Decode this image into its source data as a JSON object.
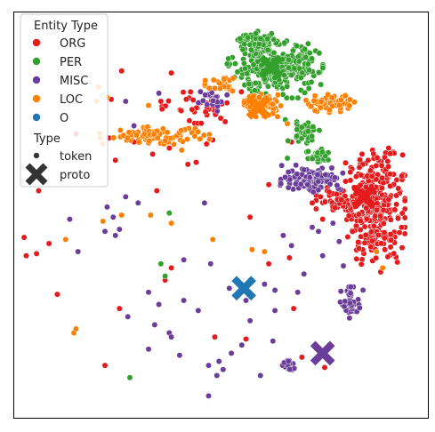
{
  "chart_data": {
    "type": "scatter",
    "title": "",
    "xlabel": "",
    "ylabel": "",
    "xlim": [
      0,
      100
    ],
    "ylim": [
      0,
      100
    ],
    "grid": false,
    "axis_ticks": false,
    "legend_placement": "upper-left",
    "legend": {
      "hue_title": "Entity Type",
      "hue_entries": [
        {
          "label": "ORG",
          "color": "#e41a1c"
        },
        {
          "label": "PER",
          "color": "#33a02c"
        },
        {
          "label": "MISC",
          "color": "#6a3d9a"
        },
        {
          "label": "LOC",
          "color": "#ff7f00"
        },
        {
          "label": "O",
          "color": "#1f78b4"
        }
      ],
      "style_title": "Type",
      "style_entries": [
        {
          "label": "token",
          "marker": "circle"
        },
        {
          "label": "proto",
          "marker": "x"
        }
      ]
    },
    "series": [
      {
        "name": "ORG",
        "color": "#e41a1c",
        "clusters": [
          {
            "cx": 87.2,
            "cy": 52.2,
            "rx": 6.5,
            "ry": 13.0,
            "n": 320
          },
          {
            "cx": 79.0,
            "cy": 53.5,
            "rx": 5.5,
            "ry": 3.0,
            "n": 70
          },
          {
            "cx": 44.0,
            "cy": 77.0,
            "rx": 12.0,
            "ry": 4.0,
            "n": 40
          }
        ],
        "scatter": [
          [
            15.0,
            70.0
          ],
          [
            26.0,
            85.5
          ],
          [
            35.5,
            78.0
          ],
          [
            38.0,
            85.0
          ],
          [
            41.0,
            71.0
          ],
          [
            43.0,
            76.0
          ],
          [
            46.5,
            67.5
          ],
          [
            48.0,
            68.5
          ],
          [
            56.0,
            77.0
          ],
          [
            57.0,
            49.5
          ],
          [
            61.5,
            57.5
          ],
          [
            67.0,
            68.0
          ],
          [
            72.0,
            53.0
          ],
          [
            74.5,
            49.0
          ],
          [
            66.5,
            39.5
          ],
          [
            61.5,
            38.0
          ],
          [
            36.5,
            34.0
          ],
          [
            25.5,
            27.0
          ],
          [
            48.5,
            20.0
          ],
          [
            56.0,
            19.5
          ],
          [
            22.0,
            13.0
          ],
          [
            38.0,
            37.0
          ],
          [
            34.5,
            56.0
          ],
          [
            42.0,
            62.5
          ],
          [
            2.5,
            44.5
          ],
          [
            3.0,
            40.0
          ],
          [
            5.5,
            40.5
          ],
          [
            6.0,
            56.0
          ],
          [
            8.5,
            43.0
          ],
          [
            10.5,
            30.5
          ],
          [
            23.0,
            69.0
          ],
          [
            24.5,
            63.5
          ],
          [
            29.0,
            68.0
          ],
          [
            33.5,
            65.0
          ],
          [
            37.5,
            66.5
          ],
          [
            44.0,
            63.0
          ],
          [
            51.0,
            73.0
          ],
          [
            69.5,
            15.0
          ],
          [
            75.0,
            12.5
          ],
          [
            67.5,
            27.0
          ],
          [
            85.5,
            63.5
          ],
          [
            89.5,
            41.5
          ],
          [
            88.5,
            36.0
          ],
          [
            74.0,
            54.5
          ],
          [
            23.5,
            78.5
          ]
        ]
      },
      {
        "name": "PER",
        "color": "#33a02c",
        "clusters": [
          {
            "cx": 63.0,
            "cy": 86.0,
            "rx": 10.5,
            "ry": 6.5,
            "n": 300
          },
          {
            "cx": 59.0,
            "cy": 92.5,
            "rx": 4.0,
            "ry": 2.5,
            "n": 60
          },
          {
            "cx": 70.0,
            "cy": 70.5,
            "rx": 3.5,
            "ry": 2.5,
            "n": 40
          },
          {
            "cx": 74.0,
            "cy": 64.5,
            "rx": 3.5,
            "ry": 2.5,
            "n": 30
          }
        ],
        "scatter": [
          [
            37.5,
            50.5
          ],
          [
            35.5,
            38.0
          ],
          [
            36.5,
            35.0
          ],
          [
            28.0,
            10.0
          ],
          [
            65.5,
            73.5
          ],
          [
            66.0,
            64.0
          ]
        ]
      },
      {
        "name": "MISC",
        "color": "#6a3d9a",
        "clusters": [
          {
            "cx": 72.0,
            "cy": 59.0,
            "rx": 7.0,
            "ry": 3.0,
            "n": 110
          },
          {
            "cx": 81.5,
            "cy": 28.5,
            "rx": 2.5,
            "ry": 3.5,
            "n": 45
          },
          {
            "cx": 66.0,
            "cy": 13.0,
            "rx": 1.5,
            "ry": 1.5,
            "n": 20
          },
          {
            "cx": 48.0,
            "cy": 78.5,
            "rx": 4.5,
            "ry": 4.0,
            "n": 25
          }
        ],
        "scatter": [
          [
            22.5,
            52.0
          ],
          [
            24.0,
            49.5
          ],
          [
            22.0,
            46.0
          ],
          [
            25.5,
            46.5
          ],
          [
            27.0,
            54.5
          ],
          [
            30.0,
            53.0
          ],
          [
            32.5,
            31.0
          ],
          [
            35.0,
            28.0
          ],
          [
            34.0,
            23.0
          ],
          [
            37.5,
            21.0
          ],
          [
            40.0,
            15.5
          ],
          [
            41.0,
            29.0
          ],
          [
            46.0,
            53.0
          ],
          [
            47.5,
            38.0
          ],
          [
            52.0,
            32.0
          ],
          [
            56.0,
            29.0
          ],
          [
            57.0,
            24.0
          ],
          [
            55.0,
            18.0
          ],
          [
            60.5,
            33.0
          ],
          [
            63.0,
            26.5
          ],
          [
            62.5,
            19.0
          ],
          [
            65.0,
            45.0
          ],
          [
            67.0,
            42.5
          ],
          [
            70.0,
            35.5
          ],
          [
            72.0,
            47.0
          ],
          [
            77.0,
            48.0
          ],
          [
            78.5,
            43.5
          ],
          [
            79.5,
            37.5
          ],
          [
            74.5,
            40.0
          ],
          [
            49.0,
            10.5
          ],
          [
            50.5,
            12.0
          ],
          [
            47.0,
            5.5
          ],
          [
            38.0,
            20.0
          ],
          [
            27.0,
            78.0
          ],
          [
            35.0,
            80.0
          ],
          [
            29.0,
            72.0
          ],
          [
            13.5,
            49.0
          ],
          [
            15.5,
            41.0
          ],
          [
            24.5,
            45.0
          ],
          [
            27.5,
            25.0
          ],
          [
            32.5,
            17.0
          ],
          [
            41.0,
            39.0
          ],
          [
            44.5,
            26.5
          ],
          [
            49.5,
            14.0
          ],
          [
            52.5,
            16.0
          ],
          [
            59.5,
            10.5
          ],
          [
            63.0,
            31.5
          ],
          [
            68.5,
            31.0
          ],
          [
            73.5,
            46.0
          ],
          [
            47.0,
            13.0
          ]
        ]
      },
      {
        "name": "LOC",
        "color": "#ff7f00",
        "clusters": [
          {
            "cx": 60.0,
            "cy": 77.0,
            "rx": 4.0,
            "ry": 2.5,
            "n": 90
          },
          {
            "cx": 76.0,
            "cy": 77.5,
            "rx": 6.0,
            "ry": 2.0,
            "n": 60
          },
          {
            "cx": 34.0,
            "cy": 69.5,
            "rx": 12.0,
            "ry": 2.0,
            "n": 90
          },
          {
            "cx": 50.5,
            "cy": 81.5,
            "rx": 4.0,
            "ry": 2.0,
            "n": 25
          }
        ],
        "scatter": [
          [
            20.0,
            78.0
          ],
          [
            22.5,
            79.0
          ],
          [
            32.5,
            77.0
          ],
          [
            33.0,
            50.0
          ],
          [
            38.0,
            48.0
          ],
          [
            40.5,
            66.0
          ],
          [
            12.5,
            44.0
          ],
          [
            21.5,
            48.5
          ],
          [
            26.0,
            50.0
          ],
          [
            48.0,
            44.0
          ],
          [
            57.5,
            41.5
          ],
          [
            60.5,
            41.0
          ],
          [
            66.0,
            72.5
          ],
          [
            87.5,
            41.0
          ],
          [
            89.0,
            37.0
          ],
          [
            14.5,
            21.0
          ],
          [
            15.0,
            22.0
          ],
          [
            20.5,
            81.5
          ]
        ]
      },
      {
        "name": "O",
        "color": "#1f78b4",
        "clusters": [],
        "scatter": []
      }
    ],
    "prototypes": [
      {
        "entity": "PER",
        "x": 62.0,
        "y": 86.5,
        "color": "#33a02c"
      },
      {
        "entity": "LOC",
        "x": 59.0,
        "y": 76.5,
        "color": "#ff7f00"
      },
      {
        "entity": "ORG",
        "x": 84.5,
        "y": 54.5,
        "color": "#e41a1c"
      },
      {
        "entity": "O",
        "x": 55.5,
        "y": 32.0,
        "color": "#1f78b4"
      },
      {
        "entity": "MISC",
        "x": 74.5,
        "y": 16.0,
        "color": "#6a3d9a"
      }
    ]
  }
}
